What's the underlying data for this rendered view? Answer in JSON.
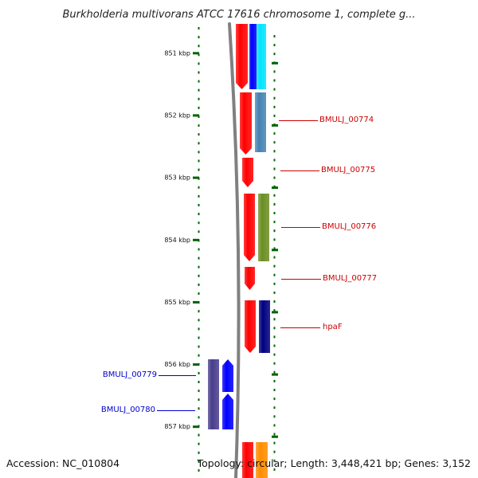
{
  "title": "Burkholderia multivorans ATCC 17616 chromosome 1, complete g...",
  "footer": {
    "accession": "Accession: NC_010804",
    "summary": "Topology: circular; Length: 3,448,421 bp; Genes: 3,152"
  },
  "colors": {
    "axis_tick": "#006400",
    "backbone": "#808080",
    "red_feature": "#ff0000",
    "blue_feature": "#0000ff",
    "cyan_feature": "#00e5ff",
    "steel_blue_feature": "#4682b4",
    "olive_feature": "#6b8e23",
    "navy_feature": "#000080",
    "slate_blue_feature": "#483d8b",
    "orange_feature": "#ff8c00",
    "label_red": "#cc0000",
    "label_blue": "#0000cc"
  },
  "scale": {
    "unit": "kbp",
    "ticks": [
      {
        "value": 851,
        "label": "851 kbp"
      },
      {
        "value": 852,
        "label": "852 kbp"
      },
      {
        "value": 853,
        "label": "853 kbp"
      },
      {
        "value": 854,
        "label": "854 kbp"
      },
      {
        "value": 855,
        "label": "855 kbp"
      },
      {
        "value": 856,
        "label": "856 kbp"
      },
      {
        "value": 857,
        "label": "857 kbp"
      }
    ]
  },
  "genes": [
    {
      "name": "BMULJ_00774",
      "strand": "right",
      "color": "#cc0000"
    },
    {
      "name": "BMULJ_00775",
      "strand": "right",
      "color": "#cc0000"
    },
    {
      "name": "BMULJ_00776",
      "strand": "right",
      "color": "#cc0000"
    },
    {
      "name": "BMULJ_00777",
      "strand": "right",
      "color": "#cc0000"
    },
    {
      "name": "hpaF",
      "strand": "right",
      "color": "#cc0000"
    },
    {
      "name": "BMULJ_00779",
      "strand": "left",
      "color": "#0000cc"
    },
    {
      "name": "BMULJ_00780",
      "strand": "left",
      "color": "#0000cc"
    }
  ]
}
